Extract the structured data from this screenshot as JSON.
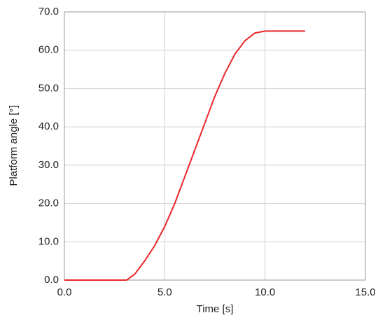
{
  "chart_data": {
    "type": "line",
    "x_label": "Time [s]",
    "y_label": "Platform angle [°]",
    "series": [
      {
        "color": "#e8262a",
        "x": [
          0,
          3.1,
          3.5,
          4,
          4.5,
          5,
          5.5,
          6,
          6.5,
          7,
          7.5,
          8,
          8.5,
          9,
          9.5,
          10,
          12
        ],
        "values": [
          0,
          0,
          1.5,
          5,
          9,
          14,
          20,
          27,
          34,
          41,
          48,
          54,
          59,
          62.5,
          64.5,
          65,
          65
        ]
      }
    ],
    "xlim": [
      0,
      15
    ],
    "ylim": [
      0,
      70
    ],
    "xticks": [
      {
        "value": 0,
        "label": "0.0"
      },
      {
        "value": 5,
        "label": "5.0"
      },
      {
        "value": 10,
        "label": "10.0"
      },
      {
        "value": 15,
        "label": "15.0"
      }
    ],
    "yticks": [
      {
        "value": 0,
        "label": "0.0"
      },
      {
        "value": 10,
        "label": "10.0"
      },
      {
        "value": 20,
        "label": "20.0"
      },
      {
        "value": 30,
        "label": "30.0"
      },
      {
        "value": 40,
        "label": "40.0"
      },
      {
        "value": 50,
        "label": "50.0"
      },
      {
        "value": 60,
        "label": "60.0"
      },
      {
        "value": 70,
        "label": "70.0"
      }
    ],
    "grid": true
  }
}
